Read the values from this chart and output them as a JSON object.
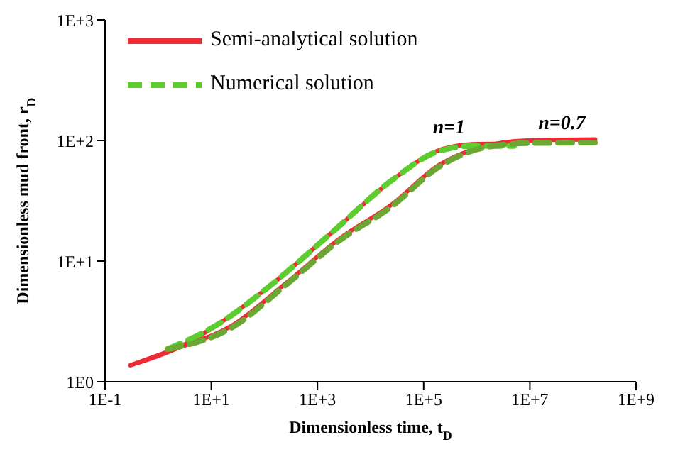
{
  "chart_data": {
    "type": "line",
    "xlabel": "Dimensionless time, t$_{D}$",
    "ylabel": "Dimensionless mud front, r$_{D}$",
    "log": "xy",
    "xlim": [
      0.1,
      1000000000
    ],
    "ylim": [
      1,
      1000
    ],
    "xticks": [
      {
        "value": 0.1,
        "label": "1E-1"
      },
      {
        "value": 10,
        "label": "1E+1"
      },
      {
        "value": 1000,
        "label": "1E+3"
      },
      {
        "value": 100000,
        "label": "1E+5"
      },
      {
        "value": 10000000,
        "label": "1E+7"
      },
      {
        "value": 1000000000,
        "label": "1E+9"
      }
    ],
    "yticks": [
      {
        "value": 1,
        "label": "1E0"
      },
      {
        "value": 10,
        "label": "1E+1"
      },
      {
        "value": 100,
        "label": "1E+2"
      },
      {
        "value": 1000,
        "label": "1E+3"
      }
    ],
    "grid": false,
    "legend": "top left",
    "marker": "none",
    "series": [
      {
        "name": "Semi-analytical solution",
        "color": "#f02a35",
        "line_style": "solid",
        "x": [
          0.3,
          2.3,
          13.5,
          120,
          1800,
          29000,
          170000,
          830000,
          3000000
        ],
        "values": [
          1.37,
          1.9,
          3.0,
          6.1,
          17,
          49,
          81,
          93,
          94
        ]
      },
      {
        "color": "#f02a35",
        "line_style": "solid",
        "x": [
          0.3,
          2.3,
          24,
          260,
          2700,
          24000,
          200000,
          1200000,
          9000000,
          170000000
        ],
        "values": [
          1.37,
          1.9,
          2.9,
          6.6,
          15.5,
          29,
          63,
          88,
          100,
          102
        ]
      },
      {
        "name": "Numerical solution",
        "color": "#5ccc2e",
        "line_style": "dashed",
        "x": [
          1.5,
          13.5,
          120,
          1800,
          29000,
          170000,
          830000,
          5000000
        ],
        "values": [
          1.86,
          3.0,
          6.1,
          17,
          49,
          80,
          90,
          90
        ]
      },
      {
        "color": "#6aa833",
        "line_style": "dashed",
        "x": [
          1.5,
          24,
          260,
          2700,
          24000,
          200000,
          1200000,
          9000000,
          170000000
        ],
        "values": [
          1.86,
          2.8,
          6.4,
          15,
          28,
          61,
          86,
          95,
          96
        ]
      }
    ],
    "annotations": [
      {
        "text": "n=1",
        "x": 300000,
        "y": 100
      },
      {
        "text": "n=0.7",
        "x": 40000000,
        "y": 108
      }
    ]
  }
}
